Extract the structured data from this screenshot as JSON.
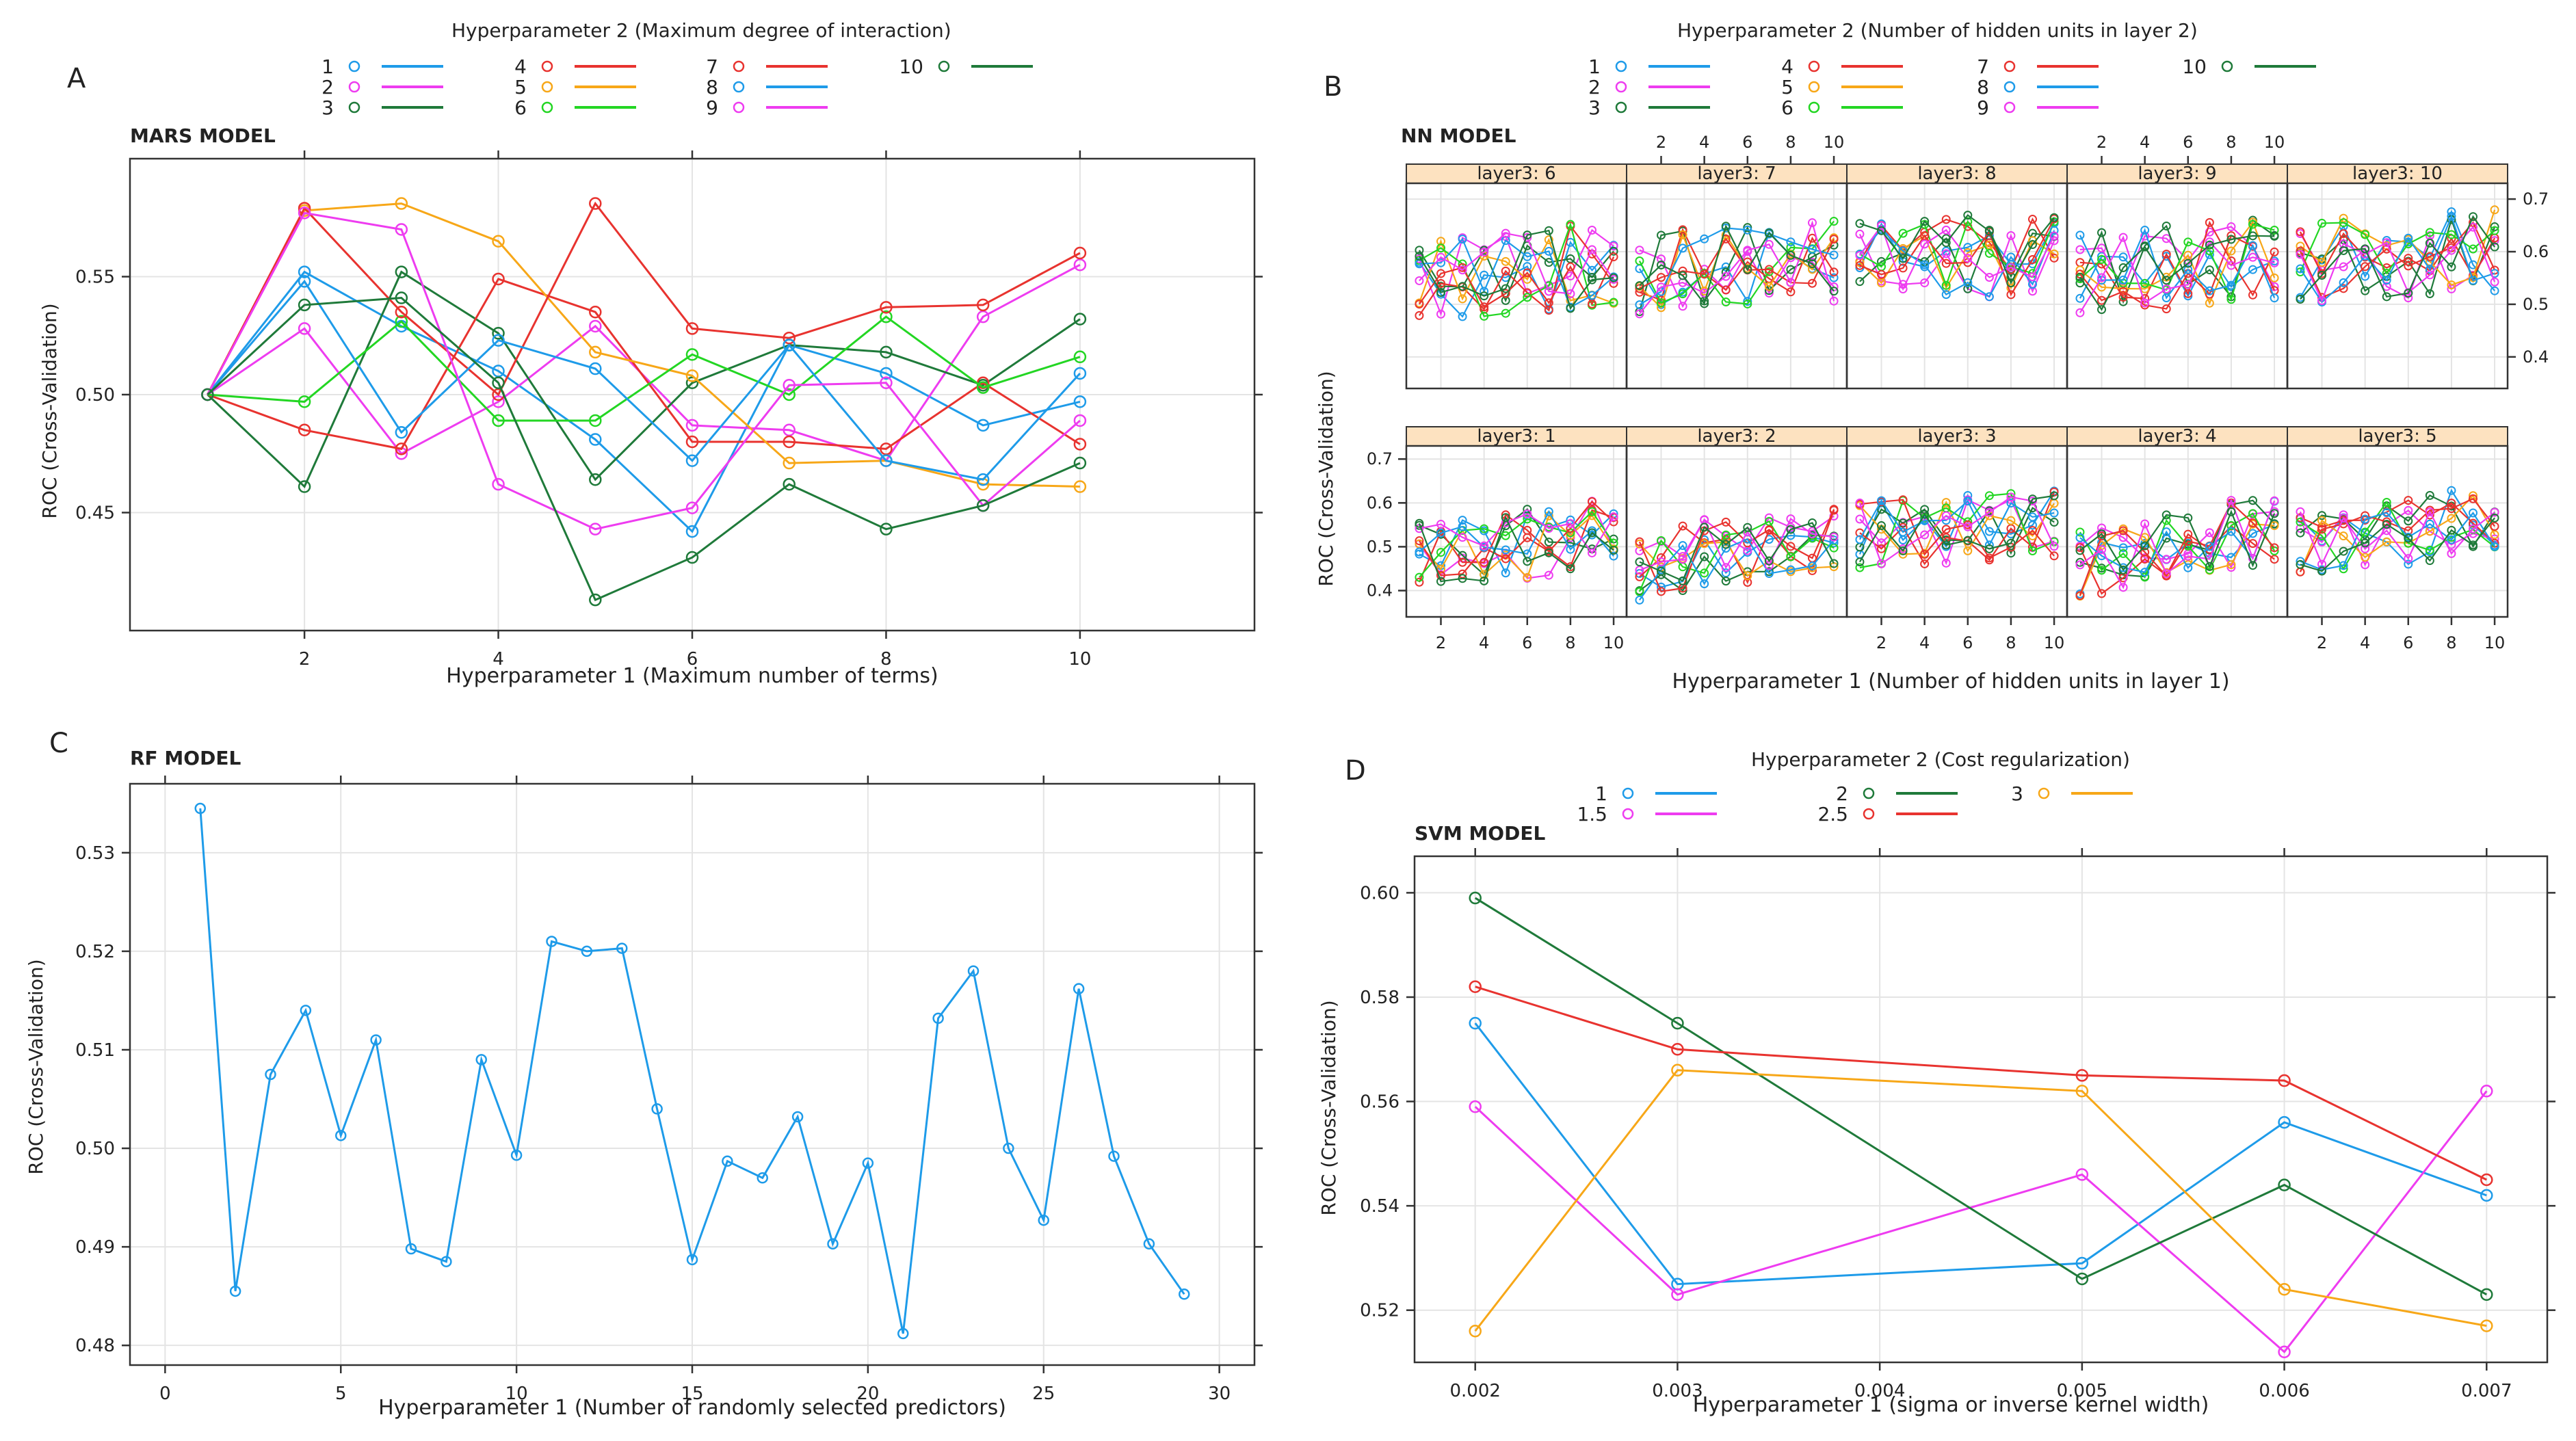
{
  "colors": {
    "c1": "#1e9be9",
    "c2": "#ee3cf0",
    "c3": "#1f7a3a",
    "c4": "#e8332f",
    "c5": "#f7a718",
    "c6": "#23d623",
    "c7": "#e8332f",
    "c8": "#1e9be9",
    "c9": "#ee3cf0",
    "c10": "#1f7a3a"
  },
  "chart_data": [
    {
      "id": "A",
      "panel_letter": "A",
      "type": "line",
      "model_title": "MARS MODEL",
      "legend_title": "Hyperparameter 2 (Maximum degree of interaction)",
      "xlabel": "Hyperparameter 1 (Maximum number of terms)",
      "ylabel": "ROC (Cross-Validation)",
      "xlim": [
        0.2,
        11.8
      ],
      "ylim": [
        0.4,
        0.6
      ],
      "xticks": [
        2,
        4,
        6,
        8,
        10
      ],
      "yticks": [
        0.45,
        0.5,
        0.55
      ],
      "ytick_labels": [
        "0.45",
        "0.50",
        "0.55"
      ],
      "x": [
        1,
        2,
        3,
        4,
        5,
        6,
        7,
        8,
        9,
        10
      ],
      "series": [
        {
          "name": "1",
          "color": "#1e9be9",
          "values": [
            0.5,
            0.552,
            0.529,
            0.51,
            0.481,
            0.442,
            0.521,
            0.509,
            0.487,
            0.497
          ]
        },
        {
          "name": "2",
          "color": "#ee3cf0",
          "values": [
            0.5,
            0.528,
            0.475,
            0.497,
            0.529,
            0.487,
            0.485,
            0.472,
            0.533,
            0.555
          ]
        },
        {
          "name": "3",
          "color": "#1f7a3a",
          "values": [
            0.5,
            0.461,
            0.552,
            0.526,
            0.464,
            0.505,
            0.521,
            0.518,
            0.504,
            0.532
          ]
        },
        {
          "name": "4",
          "color": "#e8332f",
          "values": [
            0.5,
            0.485,
            0.477,
            0.549,
            0.535,
            0.48,
            0.48,
            0.477,
            0.505,
            0.479
          ]
        },
        {
          "name": "5",
          "color": "#f7a718",
          "values": [
            0.5,
            0.578,
            0.581,
            0.565,
            0.518,
            0.508,
            0.471,
            0.472,
            0.462,
            0.461
          ]
        },
        {
          "name": "6",
          "color": "#23d623",
          "values": [
            0.5,
            0.497,
            0.531,
            0.489,
            0.489,
            0.517,
            0.5,
            0.533,
            0.503,
            0.516
          ]
        },
        {
          "name": "7",
          "color": "#e8332f",
          "values": [
            0.5,
            0.579,
            0.535,
            0.5,
            0.581,
            0.528,
            0.524,
            0.537,
            0.538,
            0.56
          ]
        },
        {
          "name": "8",
          "color": "#1e9be9",
          "values": [
            0.5,
            0.548,
            0.484,
            0.523,
            0.511,
            0.472,
            0.521,
            0.472,
            0.464,
            0.509
          ]
        },
        {
          "name": "9",
          "color": "#ee3cf0",
          "values": [
            0.5,
            0.577,
            0.57,
            0.462,
            0.443,
            0.452,
            0.504,
            0.505,
            0.453,
            0.489
          ]
        },
        {
          "name": "10",
          "color": "#1f7a3a",
          "values": [
            0.5,
            0.538,
            0.541,
            0.505,
            0.413,
            0.431,
            0.462,
            0.443,
            0.453,
            0.471
          ]
        }
      ]
    },
    {
      "id": "B",
      "panel_letter": "B",
      "type": "line",
      "model_title": "NN MODEL",
      "legend_title": "Hyperparameter 2 (Number of hidden units in layer 2)",
      "xlabel": "Hyperparameter 1 (Number of hidden units in layer 1)",
      "ylabel": "ROC (Cross-Validation)",
      "xlim": [
        0.4,
        10.6
      ],
      "ylim": [
        0.34,
        0.73
      ],
      "xticks": [
        2,
        4,
        6,
        8,
        10
      ],
      "yticks_left": [
        0.4,
        0.5,
        0.6,
        0.7
      ],
      "yticks_right": [
        0.4,
        0.5,
        0.6,
        0.7
      ],
      "series_names": [
        "1",
        "2",
        "3",
        "4",
        "5",
        "6",
        "7",
        "8",
        "9",
        "10"
      ],
      "series_colors": [
        "#1e9be9",
        "#ee3cf0",
        "#1f7a3a",
        "#e8332f",
        "#f7a718",
        "#23d623",
        "#e8332f",
        "#1e9be9",
        "#ee3cf0",
        "#1f7a3a"
      ],
      "panels": [
        {
          "strip": "layer3: 6",
          "row": 0,
          "col": 0,
          "seed": 6,
          "base": 0.56,
          "trend": 0.004
        },
        {
          "strip": "layer3: 7",
          "row": 0,
          "col": 1,
          "seed": 7,
          "base": 0.57,
          "trend": 0.003
        },
        {
          "strip": "layer3: 8",
          "row": 0,
          "col": 2,
          "seed": 8,
          "base": 0.59,
          "trend": 0.001
        },
        {
          "strip": "layer3: 9",
          "row": 0,
          "col": 3,
          "seed": 9,
          "base": 0.57,
          "trend": 0.004
        },
        {
          "strip": "layer3: 10",
          "row": 0,
          "col": 4,
          "seed": 10,
          "base": 0.59,
          "trend": 0.002
        },
        {
          "strip": "layer3:  1",
          "row": 1,
          "col": 0,
          "seed": 1,
          "base": 0.5,
          "trend": 0.006
        },
        {
          "strip": "layer3:  2",
          "row": 1,
          "col": 1,
          "seed": 2,
          "base": 0.49,
          "trend": 0.008
        },
        {
          "strip": "layer3:  3",
          "row": 1,
          "col": 2,
          "seed": 3,
          "base": 0.54,
          "trend": 0.003
        },
        {
          "strip": "layer3:  4",
          "row": 1,
          "col": 3,
          "seed": 4,
          "base": 0.5,
          "trend": 0.009
        },
        {
          "strip": "layer3:  5",
          "row": 1,
          "col": 4,
          "seed": 5,
          "base": 0.53,
          "trend": 0.007
        }
      ]
    },
    {
      "id": "C",
      "panel_letter": "C",
      "type": "line",
      "model_title": "RF MODEL",
      "xlabel": "Hyperparameter 1 (Number of randomly selected predictors)",
      "ylabel": "ROC (Cross-Validation)",
      "xlim": [
        -1,
        31
      ],
      "ylim": [
        0.478,
        0.537
      ],
      "xticks": [
        0,
        5,
        10,
        15,
        20,
        25,
        30
      ],
      "yticks": [
        0.48,
        0.49,
        0.5,
        0.51,
        0.52,
        0.53
      ],
      "ytick_labels": [
        "0.48",
        "0.49",
        "0.50",
        "0.51",
        "0.52",
        "0.53"
      ],
      "series": [
        {
          "name": "RF",
          "color": "#1e9be9",
          "x": [
            1,
            2,
            3,
            4,
            5,
            6,
            7,
            8,
            9,
            10,
            11,
            12,
            13,
            14,
            15,
            16,
            17,
            18,
            19,
            20,
            21,
            22,
            23,
            24,
            25,
            26,
            27,
            28,
            29
          ],
          "values": [
            0.5345,
            0.4855,
            0.5075,
            0.514,
            0.5013,
            0.511,
            0.4898,
            0.4885,
            0.509,
            0.4993,
            0.521,
            0.52,
            0.5203,
            0.504,
            0.4887,
            0.4987,
            0.497,
            0.5032,
            0.4903,
            0.4985,
            0.4812,
            0.5132,
            0.518,
            0.5,
            0.4927,
            0.5162,
            0.4992,
            0.4903,
            0.4852
          ]
        }
      ]
    },
    {
      "id": "D",
      "panel_letter": "D",
      "type": "line",
      "model_title": "SVM MODEL",
      "legend_title": "Hyperparameter 2 (Cost regularization)",
      "xlabel": "Hyperparameter 1 (sigma or inverse kernel width)",
      "ylabel": "ROC (Cross-Validation)",
      "xlim": [
        0.0017,
        0.0073
      ],
      "ylim": [
        0.51,
        0.607
      ],
      "xticks": [
        0.002,
        0.003,
        0.004,
        0.005,
        0.006,
        0.007
      ],
      "xtick_labels": [
        "0.002",
        "0.003",
        "0.004",
        "0.005",
        "0.006",
        "0.007"
      ],
      "yticks": [
        0.52,
        0.54,
        0.56,
        0.58,
        0.6
      ],
      "ytick_labels": [
        "0.52",
        "0.54",
        "0.56",
        "0.58",
        "0.60"
      ],
      "x": [
        0.002,
        0.003,
        0.005,
        0.006,
        0.007
      ],
      "series": [
        {
          "name": "1",
          "color": "#1e9be9",
          "values": [
            0.575,
            0.525,
            0.529,
            0.556,
            0.542
          ]
        },
        {
          "name": "1.5",
          "color": "#ee3cf0",
          "values": [
            0.559,
            0.523,
            0.546,
            0.512,
            0.562
          ]
        },
        {
          "name": "2",
          "color": "#1f7a3a",
          "values": [
            0.599,
            0.575,
            0.526,
            0.544,
            0.523
          ]
        },
        {
          "name": "2.5",
          "color": "#e8332f",
          "values": [
            0.582,
            0.57,
            0.565,
            0.564,
            0.545
          ]
        },
        {
          "name": "3",
          "color": "#f7a718",
          "values": [
            0.516,
            0.566,
            0.562,
            0.524,
            0.517
          ]
        }
      ]
    }
  ]
}
